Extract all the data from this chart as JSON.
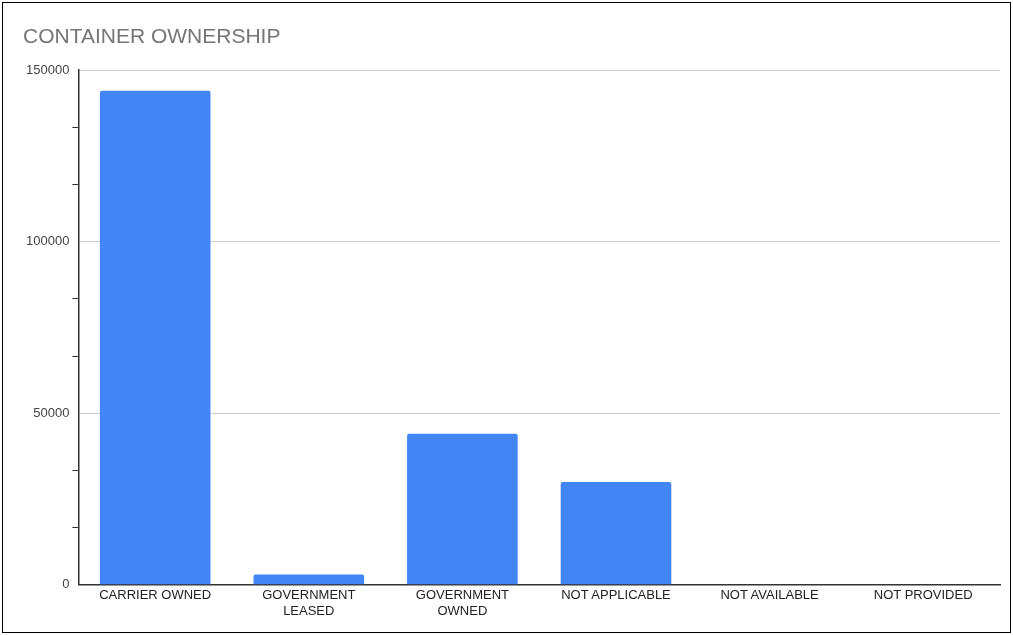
{
  "chart_data": {
    "type": "bar",
    "title": "CONTAINER OWNERSHIP",
    "categories": [
      "CARRIER OWNED",
      "GOVERNMENT LEASED",
      "GOVERNMENT OWNED",
      "NOT APPLICABLE",
      "NOT AVAILABLE",
      "NOT PROVIDED"
    ],
    "values": [
      144000,
      3000,
      44000,
      30000,
      0,
      0
    ],
    "color": "#4285f4",
    "ylim": [
      0,
      150000
    ],
    "yticks": [
      0,
      {
        "value": 16666.67,
        "label": null
      },
      {
        "value": 33333.33,
        "label": null
      },
      50000,
      {
        "value": 66666.67,
        "label": null
      },
      {
        "value": 83333.33,
        "label": null
      },
      100000,
      {
        "value": 116666.67,
        "label": null
      },
      {
        "value": 133333.33,
        "label": null
      },
      150000
    ],
    "grid": "y",
    "legend": false
  }
}
